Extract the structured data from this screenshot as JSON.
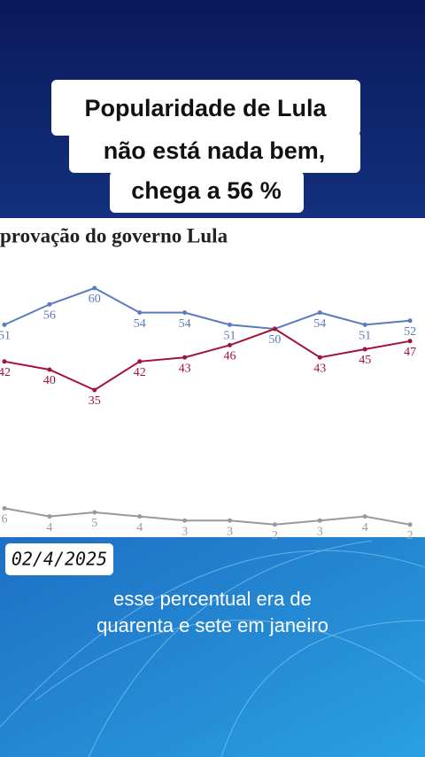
{
  "headline": [
    "Popularidade de Lula",
    "não está nada bem,",
    "chega a 56 %"
  ],
  "date": "02/4/2025",
  "caption": [
    "esse percentual era de",
    "quarenta e sete em janeiro"
  ],
  "chart_data": {
    "type": "line",
    "title": "provação do governo Lula",
    "categories": [
      null,
      null,
      null,
      null,
      null,
      null,
      null,
      null,
      null,
      null
    ],
    "ylim": [
      0,
      70
    ],
    "series": [
      {
        "color": "#5b7bc0",
        "values": [
          51,
          56,
          60,
          54,
          54,
          51,
          50,
          54,
          51,
          52
        ]
      },
      {
        "color": "#a3123a",
        "values": [
          42,
          40,
          35,
          42,
          43,
          46,
          50,
          43,
          45,
          47
        ]
      },
      {
        "color": "#999999",
        "values": [
          6,
          4,
          5,
          4,
          3,
          3,
          2,
          3,
          4,
          2
        ]
      }
    ]
  }
}
